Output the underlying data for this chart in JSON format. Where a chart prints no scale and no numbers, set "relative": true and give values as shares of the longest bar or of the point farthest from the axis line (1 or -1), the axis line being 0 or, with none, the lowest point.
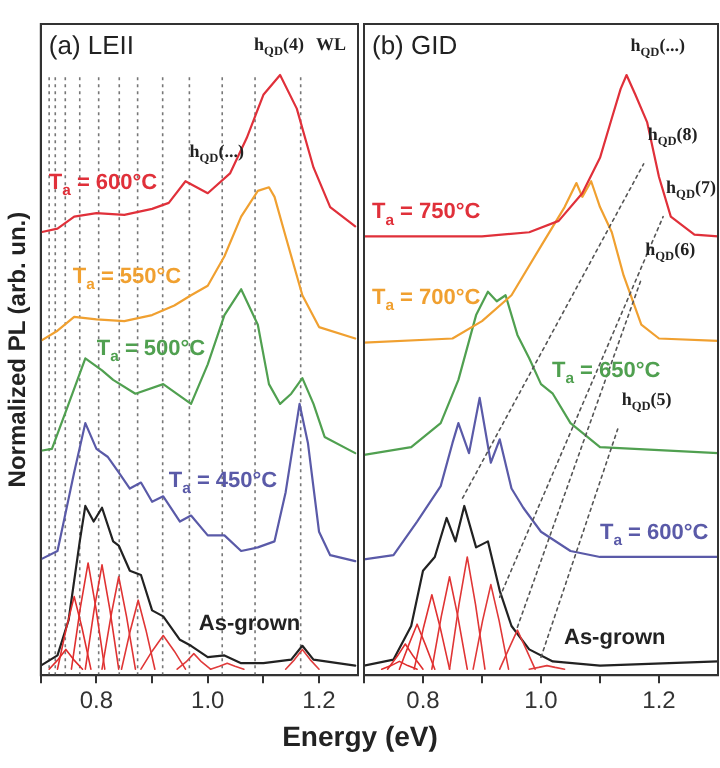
{
  "chart_data": [
    {
      "type": "line",
      "title": "(a) LEII",
      "ylabel": "Normalized PL (arb. un.)",
      "xlabel": "Energy (eV)",
      "relative": true,
      "marker": "none",
      "line_style": "solid",
      "xlim": [
        0.7,
        1.27
      ],
      "xticks": [
        {
          "value": 0.7,
          "label": null
        },
        {
          "value": 0.8,
          "label": "0.8"
        },
        {
          "value": 0.9,
          "label": null
        },
        {
          "value": 1,
          "label": "1.0"
        },
        {
          "value": 1.1,
          "label": null
        },
        {
          "value": 1.2,
          "label": "1.2"
        }
      ],
      "series": [
        {
          "name": "T$_{a}$ = 600°C",
          "color": "#e0303a",
          "x": [
            0.7,
            0.73,
            0.76,
            0.8,
            0.85,
            0.9,
            0.93,
            0.96,
            0.98,
            1.0,
            1.04,
            1.07,
            1.1,
            1.13,
            1.16,
            1.19,
            1.22,
            1.265
          ],
          "values": [
            0.738,
            0.744,
            0.764,
            0.77,
            0.767,
            0.777,
            0.787,
            0.823,
            0.813,
            0.803,
            0.836,
            0.895,
            0.967,
            1.0,
            0.944,
            0.846,
            0.78,
            0.748
          ]
        },
        {
          "name": "T$_{a}$ = 550°C",
          "color": "#f0a030",
          "x": [
            0.7,
            0.73,
            0.76,
            0.8,
            0.85,
            0.9,
            0.94,
            0.97,
            1.0,
            1.03,
            1.06,
            1.09,
            1.11,
            1.12,
            1.14,
            1.17,
            1.2,
            1.265
          ],
          "values": [
            0.557,
            0.574,
            0.597,
            0.593,
            0.59,
            0.6,
            0.616,
            0.633,
            0.649,
            0.698,
            0.764,
            0.807,
            0.813,
            0.797,
            0.731,
            0.633,
            0.58,
            0.561
          ]
        },
        {
          "name": "T$_{a}$ = 500°C",
          "color": "#50a050",
          "x": [
            0.7,
            0.72,
            0.75,
            0.78,
            0.81,
            0.83,
            0.87,
            0.92,
            0.97,
            1.0,
            1.03,
            1.06,
            1.09,
            1.11,
            1.13,
            1.15,
            1.17,
            1.19,
            1.21,
            1.265
          ],
          "values": [
            0.374,
            0.377,
            0.452,
            0.528,
            0.508,
            0.492,
            0.469,
            0.485,
            0.452,
            0.518,
            0.6,
            0.643,
            0.584,
            0.485,
            0.452,
            0.469,
            0.495,
            0.452,
            0.397,
            0.37
          ]
        },
        {
          "name": "T$_{a}$ = 450°C",
          "color": "#5a5aa8",
          "x": [
            0.7,
            0.73,
            0.76,
            0.78,
            0.8,
            0.82,
            0.84,
            0.86,
            0.88,
            0.9,
            0.92,
            0.95,
            0.97,
            1.0,
            1.03,
            1.06,
            1.09,
            1.12,
            1.14,
            1.165,
            1.18,
            1.2,
            1.22,
            1.265
          ],
          "values": [
            0.193,
            0.207,
            0.338,
            0.42,
            0.377,
            0.364,
            0.338,
            0.311,
            0.321,
            0.289,
            0.298,
            0.256,
            0.266,
            0.233,
            0.233,
            0.207,
            0.213,
            0.223,
            0.305,
            0.452,
            0.387,
            0.239,
            0.2,
            0.19
          ]
        },
        {
          "name": "As-grown",
          "color": "#222222",
          "x": [
            0.7,
            0.73,
            0.75,
            0.77,
            0.78,
            0.795,
            0.81,
            0.83,
            0.84,
            0.86,
            0.88,
            0.9,
            0.92,
            0.95,
            0.97,
            1.0,
            1.03,
            1.06,
            1.1,
            1.15,
            1.17,
            1.19,
            1.265
          ],
          "values": [
            0.016,
            0.033,
            0.092,
            0.223,
            0.282,
            0.256,
            0.279,
            0.223,
            0.216,
            0.174,
            0.167,
            0.108,
            0.098,
            0.059,
            0.049,
            0.03,
            0.033,
            0.02,
            0.02,
            0.026,
            0.049,
            0.026,
            0.016
          ]
        },
        {
          "color": "#e02c2c",
          "x": [
            0.715,
            0.731,
            0.745,
            0.759,
            0.775
          ],
          "values": [
            0.01,
            0.026,
            0.043,
            0.026,
            0.01
          ]
        },
        {
          "color": "#e02e2e",
          "x": [
            0.73,
            0.746,
            0.76,
            0.774,
            0.79
          ],
          "values": [
            0.01,
            0.079,
            0.131,
            0.079,
            0.01
          ]
        },
        {
          "color": "#e03030",
          "x": [
            0.755,
            0.771,
            0.785,
            0.799,
            0.815
          ],
          "values": [
            0.01,
            0.112,
            0.187,
            0.112,
            0.01
          ]
        },
        {
          "color": "#e03232",
          "x": [
            0.78,
            0.796,
            0.81,
            0.824,
            0.84
          ],
          "values": [
            0.01,
            0.11,
            0.184,
            0.11,
            0.01
          ]
        },
        {
          "color": "#e03434",
          "x": [
            0.81,
            0.826,
            0.84,
            0.854,
            0.87
          ],
          "values": [
            0.01,
            0.098,
            0.164,
            0.098,
            0.01
          ]
        },
        {
          "color": "#e03636",
          "x": [
            0.845,
            0.861,
            0.875,
            0.889,
            0.905
          ],
          "values": [
            0.01,
            0.075,
            0.125,
            0.075,
            0.01
          ]
        },
        {
          "color": "#e03838",
          "x": [
            0.88,
            0.9,
            0.92,
            0.94,
            0.96
          ],
          "values": [
            0.01,
            0.04,
            0.066,
            0.04,
            0.01
          ]
        },
        {
          "color": "#e03a3a",
          "x": [
            0.945,
            0.961,
            0.975,
            0.989,
            1.005
          ],
          "values": [
            0.01,
            0.022,
            0.036,
            0.022,
            0.01
          ]
        },
        {
          "color": "#e03c3c",
          "x": [
            1.005,
            1.021,
            1.035,
            1.049,
            1.065
          ],
          "values": [
            0.01,
            0.015,
            0.02,
            0.015,
            0.01
          ]
        },
        {
          "color": "#e03e3e",
          "x": [
            1.14,
            1.156,
            1.17,
            1.184,
            1.2
          ],
          "values": [
            0.01,
            0.026,
            0.043,
            0.026,
            0.01
          ]
        }
      ],
      "ref_lines": [
        {
          "axis": "x",
          "value": 0.715,
          "color": "#777777",
          "line_style": "dotted"
        },
        {
          "axis": "x",
          "value": 0.726,
          "color": "#777777",
          "line_style": "dotted"
        },
        {
          "axis": "x",
          "value": 0.744,
          "color": "#777777",
          "line_style": "dotted"
        },
        {
          "axis": "x",
          "value": 0.77,
          "color": "#777777",
          "line_style": "dotted"
        },
        {
          "axis": "x",
          "value": 0.804,
          "color": "#777777",
          "line_style": "dotted"
        },
        {
          "axis": "x",
          "value": 0.841,
          "color": "#777777",
          "line_style": "dotted"
        },
        {
          "axis": "x",
          "value": 0.874,
          "color": "#777777",
          "line_style": "dotted"
        },
        {
          "axis": "x",
          "value": 0.919,
          "color": "#777777",
          "line_style": "dotted"
        },
        {
          "axis": "x",
          "value": 0.967,
          "color": "#777777",
          "line_style": "dotted"
        },
        {
          "axis": "x",
          "value": 1.026,
          "color": "#777777",
          "line_style": "dotted"
        },
        {
          "axis": "x",
          "value": 1.085,
          "color": "#777777",
          "line_style": "dotted"
        },
        {
          "axis": "x",
          "value": 1.167,
          "color": "#777777",
          "line_style": "dotted"
        }
      ],
      "annotations": [
        {
          "text": "h$_{QD}$(...)",
          "x": 0.96,
          "y": 0.823
        },
        "h$_{QD}$(4)",
        "WL"
      ]
    },
    {
      "type": "line",
      "title": "(b) GID",
      "relative": true,
      "marker": "none",
      "line_style": "solid",
      "xlim": [
        0.7,
        1.3
      ],
      "xticks": [
        {
          "value": 0.7,
          "label": null
        },
        {
          "value": 0.8,
          "label": "0.8"
        },
        {
          "value": 0.9,
          "label": null
        },
        {
          "value": 1,
          "label": "1.0"
        },
        {
          "value": 1.1,
          "label": null
        },
        {
          "value": 1.2,
          "label": "1.2"
        }
      ],
      "series": [
        {
          "name": "T$_{a}$ = 750°C",
          "color": "#e0303a",
          "x": [
            0.7,
            0.9,
            0.98,
            1.03,
            1.07,
            1.1,
            1.12,
            1.135,
            1.145,
            1.16,
            1.18,
            1.2,
            1.22,
            1.26,
            1.3
          ],
          "values": [
            0.731,
            0.731,
            0.738,
            0.757,
            0.803,
            0.862,
            0.928,
            0.977,
            1.0,
            0.967,
            0.921,
            0.83,
            0.764,
            0.734,
            0.731
          ]
        },
        {
          "name": "T$_{a}$ = 700°C",
          "color": "#f0a030",
          "x": [
            0.7,
            0.85,
            0.9,
            0.95,
            1.0,
            1.04,
            1.06,
            1.07,
            1.085,
            1.1,
            1.12,
            1.14,
            1.17,
            1.2,
            1.3
          ],
          "values": [
            0.554,
            0.561,
            0.59,
            0.633,
            0.715,
            0.78,
            0.82,
            0.797,
            0.823,
            0.78,
            0.738,
            0.666,
            0.584,
            0.561,
            0.557
          ]
        },
        {
          "name": "T$_{a}$ = 650°C",
          "color": "#50a050",
          "x": [
            0.7,
            0.78,
            0.83,
            0.86,
            0.89,
            0.91,
            0.925,
            0.94,
            0.96,
            0.98,
            1.0,
            1.02,
            1.05,
            1.1,
            1.3
          ],
          "values": [
            0.367,
            0.38,
            0.42,
            0.492,
            0.6,
            0.639,
            0.623,
            0.633,
            0.567,
            0.528,
            0.485,
            0.469,
            0.42,
            0.38,
            0.37
          ]
        },
        {
          "name": "T$_{a}$ = 600°C",
          "color": "#5a5aa8",
          "x": [
            0.7,
            0.75,
            0.79,
            0.83,
            0.85,
            0.86,
            0.878,
            0.896,
            0.915,
            0.93,
            0.95,
            0.97,
            1.0,
            1.05,
            1.1,
            1.3
          ],
          "values": [
            0.193,
            0.2,
            0.256,
            0.315,
            0.387,
            0.42,
            0.37,
            0.462,
            0.354,
            0.393,
            0.311,
            0.279,
            0.239,
            0.207,
            0.197,
            0.197
          ]
        },
        {
          "name": "As-grown",
          "color": "#222222",
          "x": [
            0.7,
            0.75,
            0.78,
            0.8,
            0.82,
            0.84,
            0.855,
            0.87,
            0.89,
            0.91,
            0.93,
            0.95,
            0.98,
            1.02,
            1.1,
            1.3
          ],
          "values": [
            0.016,
            0.026,
            0.082,
            0.174,
            0.197,
            0.262,
            0.223,
            0.282,
            0.213,
            0.223,
            0.141,
            0.082,
            0.043,
            0.023,
            0.016,
            0.023
          ]
        },
        {
          "color": "#e02c2c",
          "x": [
            0.73,
            0.746,
            0.76,
            0.774,
            0.79
          ],
          "values": [
            0.01,
            0.016,
            0.023,
            0.016,
            0.01
          ]
        },
        {
          "color": "#e02e2e",
          "x": [
            0.74,
            0.756,
            0.77,
            0.784,
            0.8
          ],
          "values": [
            0.01,
            0.031,
            0.052,
            0.031,
            0.01
          ]
        },
        {
          "color": "#e03030",
          "x": [
            0.76,
            0.776,
            0.79,
            0.804,
            0.82
          ],
          "values": [
            0.01,
            0.051,
            0.085,
            0.051,
            0.01
          ]
        },
        {
          "color": "#e03232",
          "x": [
            0.785,
            0.801,
            0.815,
            0.829,
            0.845
          ],
          "values": [
            0.01,
            0.08,
            0.134,
            0.08,
            0.01
          ]
        },
        {
          "color": "#e03434",
          "x": [
            0.815,
            0.831,
            0.845,
            0.859,
            0.875
          ],
          "values": [
            0.01,
            0.098,
            0.164,
            0.098,
            0.01
          ]
        },
        {
          "color": "#e03636",
          "x": [
            0.845,
            0.861,
            0.875,
            0.889,
            0.905
          ],
          "values": [
            0.01,
            0.118,
            0.197,
            0.118,
            0.01
          ]
        },
        {
          "color": "#e03838",
          "x": [
            0.885,
            0.901,
            0.915,
            0.929,
            0.945
          ],
          "values": [
            0.01,
            0.091,
            0.151,
            0.091,
            0.01
          ]
        },
        {
          "color": "#e03a3a",
          "x": [
            0.93,
            0.946,
            0.96,
            0.974,
            0.99
          ],
          "values": [
            0.01,
            0.045,
            0.075,
            0.045,
            0.01
          ]
        },
        {
          "color": "#e03c3c",
          "x": [
            0.98,
            0.996,
            1.01,
            1.024,
            1.04
          ],
          "values": [
            0.01,
            0.013,
            0.016,
            0.013,
            0.01
          ]
        },
        {
          "color": "#555555",
          "line_style": "dotted",
          "x": [
            0.867,
            1.174
          ],
          "values": [
            0.295,
            0.852
          ]
        },
        {
          "color": "#555555",
          "line_style": "dotted",
          "x": [
            0.93,
            1.207
          ],
          "values": [
            0.13,
            0.764
          ]
        },
        {
          "color": "#555555",
          "line_style": "dotted",
          "x": [
            0.96,
            1.17
          ],
          "values": [
            0.08,
            0.66
          ]
        },
        {
          "color": "#555555",
          "line_style": "dotted",
          "x": [
            1.0,
            1.13
          ],
          "values": [
            0.03,
            0.41
          ]
        }
      ],
      "annotations": [
        {
          "text": "h$_{QD}$(...)",
          "x": 1.145,
          "y": 1.0
        },
        {
          "text": "h$_{QD}$(8)",
          "x": 1.174,
          "y": 0.852
        },
        {
          "text": "h$_{QD}$(7)",
          "x": 1.207,
          "y": 0.764
        },
        {
          "text": "h$_{QD}$(6)",
          "x": 1.17,
          "y": 0.66
        },
        {
          "text": "h$_{QD}$(5)",
          "x": 1.13,
          "y": 0.41
        }
      ]
    }
  ]
}
